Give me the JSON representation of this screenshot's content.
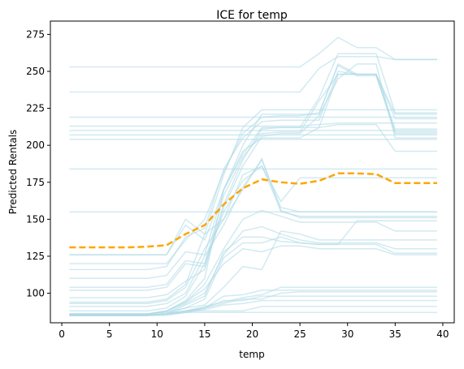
{
  "chart_data": {
    "type": "line",
    "title": "ICE for temp",
    "xlabel": "temp",
    "ylabel": "Predicted Rentals",
    "xlim": [
      -1.2,
      41.2
    ],
    "ylim": [
      80,
      284
    ],
    "xticks": [
      0,
      5,
      10,
      15,
      20,
      25,
      30,
      35,
      40
    ],
    "yticks": [
      100,
      125,
      150,
      175,
      200,
      225,
      250,
      275
    ],
    "grid": false,
    "colors": {
      "ice": "#add8e6",
      "pdp": "#ffa500"
    },
    "x": [
      0.8,
      3,
      5,
      7,
      9,
      11,
      13,
      15,
      17,
      19,
      21,
      23,
      25,
      27,
      29,
      31,
      33,
      35,
      37,
      39.4
    ],
    "ice_series": [
      [
        253,
        253,
        253,
        253,
        253,
        253,
        253,
        253,
        253,
        253,
        253,
        253,
        253,
        262,
        273,
        266,
        266,
        258,
        258,
        258
      ],
      [
        236,
        236,
        236,
        236,
        236,
        236,
        236,
        236,
        236,
        236,
        236,
        236,
        236,
        252,
        260,
        260,
        260,
        258,
        258,
        258
      ],
      [
        219,
        219,
        219,
        219,
        219,
        219,
        219,
        219,
        219,
        219,
        219,
        219,
        219,
        219,
        219,
        219,
        219,
        219,
        219,
        219
      ],
      [
        213,
        213,
        213,
        213,
        213,
        213,
        213,
        213,
        213,
        213,
        213,
        213,
        213,
        214,
        215,
        215,
        215,
        215,
        215,
        215
      ],
      [
        210,
        210,
        210,
        210,
        210,
        210,
        210,
        210,
        210,
        210,
        210,
        210,
        210,
        210,
        210,
        210,
        210,
        210,
        210,
        210
      ],
      [
        207,
        207,
        207,
        207,
        207,
        207,
        207,
        207,
        207,
        207,
        207,
        207,
        207,
        207,
        207,
        207,
        207,
        207,
        207,
        207
      ],
      [
        204,
        204,
        204,
        204,
        204,
        204,
        204,
        204,
        204,
        204,
        204,
        204,
        204,
        204,
        204,
        204,
        204,
        204,
        204,
        204
      ],
      [
        184,
        184,
        184,
        184,
        184,
        184,
        184,
        184,
        184,
        184,
        184,
        184,
        184,
        184,
        184,
        184,
        184,
        184,
        184,
        184
      ],
      [
        155,
        155,
        155,
        155,
        155,
        155,
        155,
        155,
        155,
        155,
        155,
        155,
        155,
        155,
        155,
        155,
        155,
        155,
        155,
        155
      ],
      [
        126,
        126,
        126,
        126,
        126,
        126,
        150,
        140,
        180,
        212,
        224,
        224,
        224,
        224,
        224,
        224,
        224,
        224,
        224,
        224
      ],
      [
        126,
        126,
        126,
        126,
        126,
        126,
        146,
        136,
        170,
        200,
        221,
        221,
        221,
        221,
        255,
        248,
        248,
        221,
        221,
        221
      ],
      [
        120,
        120,
        120,
        120,
        120,
        120,
        136,
        150,
        182,
        208,
        219,
        220,
        220,
        222,
        254,
        247,
        247,
        209,
        209,
        209
      ],
      [
        116,
        116,
        116,
        116,
        116,
        118,
        138,
        144,
        184,
        205,
        216,
        217,
        217,
        217,
        250,
        248,
        248,
        218,
        218,
        218
      ],
      [
        110,
        110,
        110,
        110,
        110,
        112,
        128,
        126,
        170,
        194,
        212,
        212,
        212,
        212,
        248,
        248,
        248,
        211,
        211,
        211
      ],
      [
        104,
        104,
        104,
        104,
        104,
        106,
        122,
        120,
        166,
        192,
        208,
        209,
        209,
        230,
        248,
        248,
        248,
        208,
        208,
        208
      ],
      [
        102,
        102,
        102,
        102,
        102,
        104,
        120,
        118,
        160,
        190,
        211,
        212,
        212,
        232,
        262,
        262,
        262,
        222,
        222,
        222
      ],
      [
        97,
        97,
        97,
        97,
        97,
        99,
        108,
        116,
        158,
        186,
        206,
        208,
        208,
        220,
        245,
        255,
        255,
        205,
        205,
        205
      ],
      [
        94,
        94,
        94,
        94,
        94,
        96,
        106,
        140,
        150,
        170,
        191,
        155,
        152,
        152,
        152,
        152,
        152,
        152,
        152,
        152
      ],
      [
        93,
        93,
        93,
        93,
        93,
        95,
        104,
        130,
        150,
        180,
        186,
        156,
        151,
        151,
        151,
        151,
        151,
        151,
        151,
        151
      ],
      [
        91,
        91,
        91,
        91,
        91,
        93,
        100,
        125,
        146,
        172,
        190,
        158,
        155,
        155,
        155,
        155,
        155,
        155,
        155,
        155
      ],
      [
        88,
        88,
        88,
        88,
        88,
        90,
        98,
        120,
        155,
        176,
        186,
        162,
        178,
        178,
        178,
        178,
        178,
        178,
        178,
        178
      ],
      [
        86,
        86,
        86,
        86,
        86,
        88,
        95,
        110,
        170,
        196,
        205,
        205,
        205,
        212,
        214,
        214,
        214,
        196,
        196,
        196
      ],
      [
        86,
        86,
        86,
        86,
        86,
        88,
        94,
        106,
        130,
        150,
        156,
        152,
        148,
        148,
        148,
        148,
        148,
        142,
        142,
        142
      ],
      [
        86,
        86,
        86,
        86,
        86,
        87,
        93,
        100,
        126,
        142,
        145,
        140,
        136,
        134,
        134,
        134,
        134,
        130,
        130,
        130
      ],
      [
        85,
        85,
        85,
        85,
        85,
        86,
        92,
        98,
        128,
        138,
        138,
        135,
        134,
        133,
        133,
        133,
        133,
        127,
        127,
        127
      ],
      [
        85,
        85,
        85,
        85,
        85,
        86,
        90,
        96,
        124,
        134,
        134,
        138,
        134,
        133,
        133,
        149,
        149,
        149,
        149,
        149
      ],
      [
        86,
        86,
        86,
        86,
        86,
        88,
        94,
        103,
        120,
        130,
        128,
        132,
        132,
        130,
        130,
        130,
        130,
        126,
        126,
        126
      ],
      [
        86,
        86,
        86,
        86,
        86,
        87,
        90,
        92,
        104,
        118,
        116,
        142,
        140,
        136,
        136,
        136,
        136,
        136,
        136,
        136
      ],
      [
        85,
        85,
        85,
        85,
        85,
        86,
        88,
        90,
        98,
        99,
        102,
        102,
        102,
        102,
        102,
        102,
        102,
        102,
        102,
        102
      ],
      [
        85,
        85,
        85,
        85,
        85,
        86,
        87,
        90,
        95,
        95,
        98,
        98,
        98,
        98,
        98,
        98,
        98,
        98,
        98,
        98
      ],
      [
        85,
        85,
        85,
        85,
        85,
        86,
        87,
        89,
        92,
        93,
        95,
        95,
        95,
        95,
        95,
        95,
        95,
        95,
        95,
        95
      ],
      [
        85,
        85,
        85,
        85,
        85,
        86,
        88,
        88,
        88,
        88,
        91,
        91,
        91,
        91,
        91,
        91,
        91,
        91,
        91,
        91
      ],
      [
        85,
        85,
        85,
        85,
        85,
        85,
        87,
        87,
        87,
        87,
        87,
        87,
        87,
        87,
        87,
        87,
        87,
        87,
        87,
        87
      ],
      [
        85,
        85,
        85,
        85,
        85,
        86,
        88,
        90,
        93,
        96,
        96,
        100,
        101,
        101,
        101,
        101,
        101,
        101,
        101,
        101
      ],
      [
        85,
        85,
        85,
        85,
        85,
        86,
        88,
        91,
        94,
        97,
        99,
        104,
        104,
        104,
        104,
        104,
        104,
        104,
        104,
        104
      ]
    ],
    "pdp_series": [
      131,
      131,
      131,
      131,
      131.5,
      132.5,
      140,
      146,
      160,
      171,
      177,
      175,
      174,
      176,
      181,
      181,
      180.5,
      174.5,
      174.5,
      174.5
    ]
  }
}
